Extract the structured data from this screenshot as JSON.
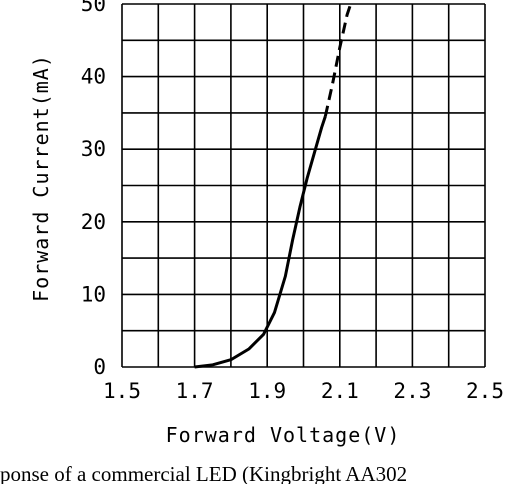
{
  "chart_data": {
    "type": "line",
    "xlabel": "Forward Voltage(V)",
    "ylabel": "Forward Current(mA)",
    "xlim": [
      1.5,
      2.5
    ],
    "ylim": [
      0,
      50
    ],
    "x_ticks": [
      "1.5",
      "1.7",
      "1.9",
      "2.1",
      "2.3",
      "2.5"
    ],
    "y_ticks": [
      "0",
      "10",
      "20",
      "30",
      "40",
      "50"
    ],
    "grid": true,
    "series": [
      {
        "style": "solid",
        "points": [
          [
            1.7,
            0.0
          ],
          [
            1.75,
            0.3
          ],
          [
            1.8,
            1.0
          ],
          [
            1.85,
            2.5
          ],
          [
            1.89,
            4.5
          ],
          [
            1.92,
            7.5
          ],
          [
            1.95,
            12.5
          ],
          [
            1.97,
            17.5
          ],
          [
            1.99,
            22.0
          ],
          [
            2.01,
            26.0
          ],
          [
            2.03,
            29.5
          ],
          [
            2.05,
            33.0
          ],
          [
            2.06,
            34.5
          ]
        ]
      },
      {
        "style": "dashed",
        "points": [
          [
            2.06,
            34.5
          ],
          [
            2.08,
            39.0
          ],
          [
            2.1,
            44.0
          ],
          [
            2.12,
            48.5
          ],
          [
            2.13,
            50.0
          ]
        ]
      }
    ]
  },
  "caption": "ponse of a commercial LED (Kingbright AA302"
}
